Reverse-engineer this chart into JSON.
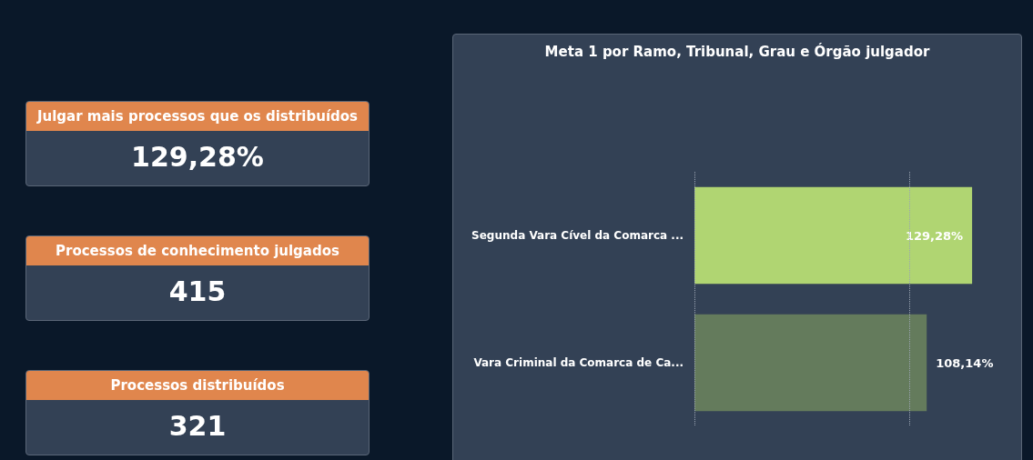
{
  "chart_data": [
    {
      "type": "other",
      "title": "Julgar mais processos que os distribuídos",
      "annotations": [
        "129,28%"
      ]
    },
    {
      "type": "other",
      "title": "Processos de conhecimento julgados",
      "annotations": [
        "415"
      ]
    },
    {
      "type": "other",
      "title": "Processos distribuídos",
      "annotations": [
        "321"
      ]
    },
    {
      "type": "bar",
      "orientation": "horizontal",
      "title": "Meta 1 por Ramo, Tribunal, Grau e Órgão julgador",
      "categories": [
        "Segunda Vara Cível da Comarca ...",
        "Vara Criminal da Comarca de Ca..."
      ],
      "values": [
        129.28,
        108.14
      ],
      "value_labels": [
        "129,28%",
        "108,14%"
      ],
      "colors": [
        "#b0d572",
        "#647b5c"
      ],
      "ref_lines": [
        {
          "axis": "x",
          "value": 0,
          "color": "#9aa4b2",
          "line_style": "dotted"
        },
        {
          "axis": "x",
          "value": 100,
          "color": "#9aa4b2",
          "line_style": "dotted"
        }
      ],
      "tick_labels": "y"
    }
  ]
}
